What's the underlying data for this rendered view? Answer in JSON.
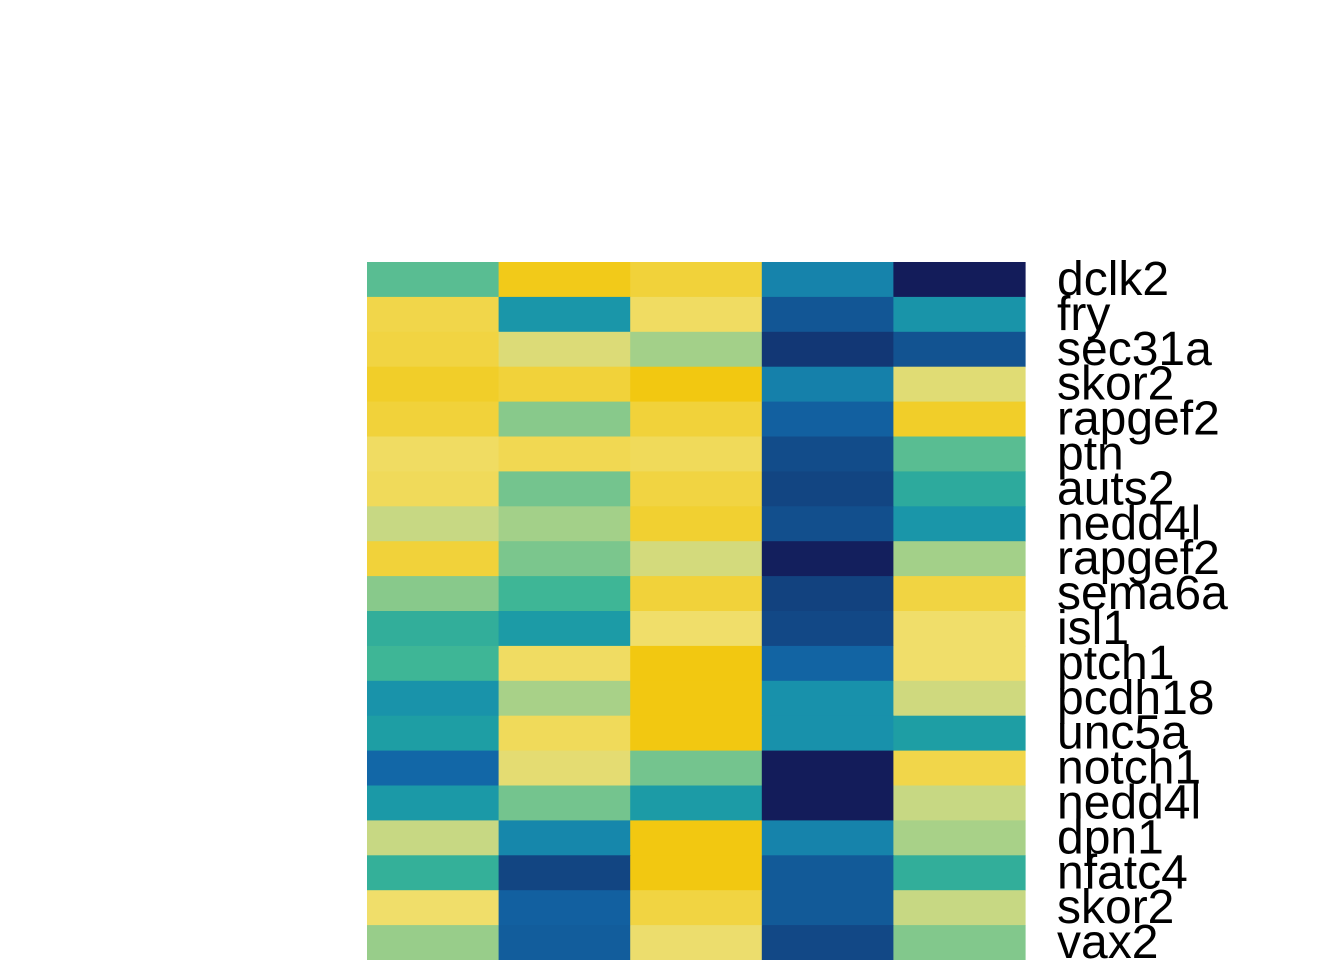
{
  "chart_data": {
    "type": "heatmap",
    "rows": [
      "dclk2",
      "fry",
      "sec31a",
      "skor2",
      "rapgef2",
      "ptn",
      "auts2",
      "nedd4l",
      "rapgef2",
      "sema6a",
      "isl1",
      "ptch1",
      "pcdh18",
      "unc5a",
      "notch1",
      "nedd4l",
      "dpn1",
      "nfatc4",
      "skor2",
      "vax2"
    ],
    "columns": 5,
    "color_scale": {
      "name": "YlGnBu-like",
      "low": "#131c5a",
      "high": "#f2c811",
      "stops": [
        "#131c5a",
        "#12427f",
        "#1268a8",
        "#178fac",
        "#1e9fa4",
        "#3bb596",
        "#86c98b",
        "#c2d786",
        "#f0de6b",
        "#f2c811"
      ]
    },
    "values": [
      [
        0.6,
        0.99,
        0.95,
        0.3,
        0.0
      ],
      [
        0.93,
        0.38,
        0.9,
        0.17,
        0.37
      ],
      [
        0.94,
        0.84,
        0.72,
        0.08,
        0.16
      ],
      [
        0.97,
        0.95,
        1.0,
        0.29,
        0.85
      ],
      [
        0.95,
        0.67,
        0.95,
        0.2,
        0.97
      ],
      [
        0.9,
        0.92,
        0.91,
        0.14,
        0.6
      ],
      [
        0.91,
        0.64,
        0.94,
        0.12,
        0.5
      ],
      [
        0.79,
        0.72,
        0.96,
        0.15,
        0.38
      ],
      [
        0.95,
        0.65,
        0.82,
        0.01,
        0.72
      ],
      [
        0.67,
        0.56,
        0.95,
        0.11,
        0.94
      ],
      [
        0.52,
        0.42,
        0.89,
        0.13,
        0.89
      ],
      [
        0.56,
        0.9,
        1.0,
        0.21,
        0.89
      ],
      [
        0.36,
        0.73,
        1.0,
        0.35,
        0.81
      ],
      [
        0.44,
        0.91,
        1.0,
        0.35,
        0.44
      ],
      [
        0.22,
        0.86,
        0.64,
        0.0,
        0.93
      ],
      [
        0.4,
        0.64,
        0.42,
        0.0,
        0.79
      ],
      [
        0.79,
        0.31,
        1.0,
        0.3,
        0.73
      ],
      [
        0.53,
        0.12,
        1.0,
        0.18,
        0.52
      ],
      [
        0.89,
        0.2,
        0.94,
        0.18,
        0.79
      ],
      [
        0.7,
        0.19,
        0.88,
        0.13,
        0.66
      ]
    ]
  }
}
